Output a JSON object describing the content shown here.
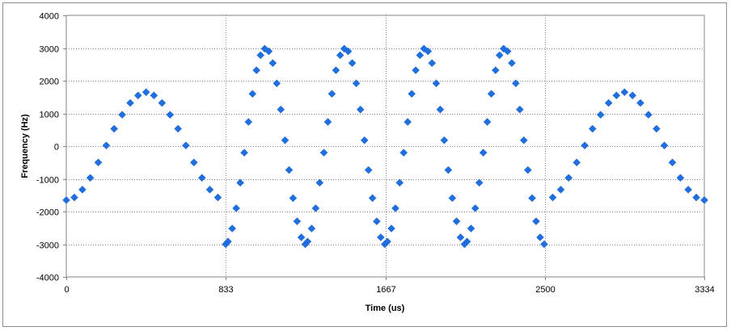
{
  "chart_data": {
    "type": "scatter",
    "xlabel": "Time (us)",
    "ylabel": "Frequency (Hz)",
    "xlim": [
      0,
      3334
    ],
    "ylim": [
      -4000,
      4000
    ],
    "x_ticks": [
      0,
      833,
      1667,
      2500,
      3334
    ],
    "y_ticks": [
      -4000,
      -3000,
      -2000,
      -1000,
      0,
      1000,
      2000,
      3000,
      4000
    ],
    "grid": true,
    "legend": "none",
    "marker": "diamond",
    "marker_color": "#1f6fe0",
    "series": [
      {
        "x": [
          0,
          42,
          84,
          125,
          167,
          209,
          250,
          292,
          334,
          375,
          417,
          458,
          500,
          542,
          584,
          625,
          667,
          709,
          750,
          792,
          833,
          845,
          867,
          888,
          909,
          930,
          952,
          973,
          994,
          1015,
          1037,
          1058,
          1079,
          1100,
          1121,
          1143,
          1164,
          1185,
          1206,
          1228,
          1249,
          1261,
          1282,
          1303,
          1324,
          1346,
          1367,
          1388,
          1409,
          1431,
          1452,
          1473,
          1494,
          1515,
          1537,
          1558,
          1579,
          1600,
          1622,
          1643,
          1664,
          1678,
          1699,
          1720,
          1742,
          1763,
          1784,
          1805,
          1826,
          1848,
          1869,
          1890,
          1911,
          1933,
          1954,
          1975,
          1996,
          2017,
          2039,
          2060,
          2081,
          2094,
          2115,
          2137,
          2158,
          2179,
          2200,
          2221,
          2243,
          2264,
          2285,
          2306,
          2328,
          2349,
          2370,
          2391,
          2412,
          2434,
          2455,
          2476,
          2497,
          2542,
          2584,
          2625,
          2667,
          2709,
          2750,
          2792,
          2834,
          2875,
          2917,
          2959,
          3000,
          3042,
          3084,
          3125,
          3167,
          3209,
          3250,
          3292,
          3334
        ],
        "y": [
          -1650,
          -1570,
          -1330,
          -970,
          -500,
          20,
          530,
          960,
          1320,
          1550,
          1650,
          1550,
          1320,
          960,
          530,
          20,
          -500,
          -970,
          -1330,
          -1570,
          -3000,
          -2920,
          -2520,
          -1900,
          -1120,
          -200,
          740,
          1600,
          2320,
          2780,
          2980,
          2900,
          2540,
          1920,
          1120,
          180,
          -730,
          -1590,
          -2300,
          -2790,
          -3000,
          -2920,
          -2520,
          -1900,
          -1120,
          -200,
          740,
          1600,
          2320,
          2780,
          2980,
          2900,
          2540,
          1920,
          1120,
          180,
          -730,
          -1590,
          -2300,
          -2790,
          -3000,
          -2920,
          -2520,
          -1900,
          -1120,
          -200,
          740,
          1600,
          2320,
          2780,
          2980,
          2900,
          2540,
          1920,
          1120,
          180,
          -730,
          -1590,
          -2300,
          -2790,
          -3000,
          -2920,
          -2520,
          -1900,
          -1120,
          -200,
          740,
          1600,
          2320,
          2780,
          2980,
          2900,
          2540,
          1920,
          1120,
          180,
          -730,
          -1590,
          -2300,
          -2790,
          -3000,
          -1570,
          -1330,
          -970,
          -500,
          20,
          530,
          960,
          1320,
          1550,
          1650,
          1550,
          1320,
          960,
          530,
          20,
          -500,
          -970,
          -1330,
          -1570,
          -1650
        ]
      }
    ]
  }
}
